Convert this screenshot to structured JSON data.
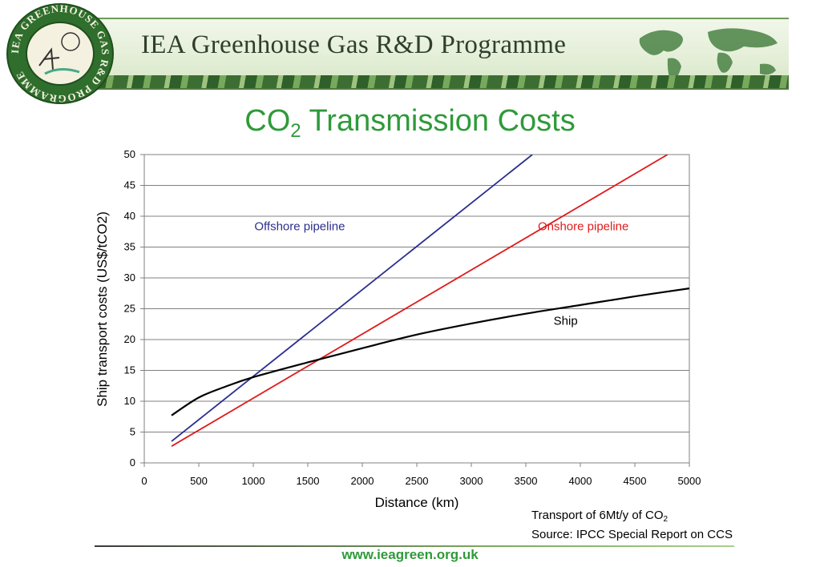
{
  "header": {
    "programme_title": "IEA Greenhouse Gas R&D Programme",
    "logo_text": "IEA GREENHOUSE GAS R&D PROGRAMME"
  },
  "slide": {
    "title_main": "CO",
    "title_sub": "2",
    "title_rest": " Transmission Costs"
  },
  "note": {
    "line1_main": "Transport of 6Mt/y of CO",
    "line1_sub": "2",
    "line2": "Source: IPCC Special Report on CCS"
  },
  "footer": {
    "url": "www.ieagreen.org.uk"
  },
  "colors": {
    "title_green": "#2f9a3a",
    "offshore": "#2c2f8f",
    "onshore": "#e01b1b",
    "ship": "#000000"
  },
  "chart_data": {
    "type": "line",
    "title": "",
    "xlabel": "Distance (km)",
    "ylabel": "Ship transport costs (US$/tCO2)",
    "xlim": [
      0,
      5000
    ],
    "ylim": [
      0,
      50
    ],
    "xticks": [
      "0",
      "500",
      "1000",
      "1500",
      "2000",
      "2500",
      "3000",
      "3500",
      "4000",
      "4500",
      "5000"
    ],
    "yticks": [
      "0",
      "5",
      "10",
      "15",
      "20",
      "25",
      "30",
      "35",
      "40",
      "45",
      "50"
    ],
    "grid": "horizontal",
    "series": [
      {
        "name": "Offshore pipeline",
        "color": "#2c2f8f",
        "x": [
          250,
          3560
        ],
        "y": [
          3.5,
          50
        ]
      },
      {
        "name": "Onshore pipeline",
        "color": "#e01b1b",
        "x": [
          250,
          4800
        ],
        "y": [
          2.7,
          50
        ]
      },
      {
        "name": "Ship",
        "color": "#000000",
        "x": [
          250,
          500,
          750,
          1000,
          1500,
          2000,
          2500,
          3000,
          3500,
          4000,
          4500,
          5000
        ],
        "y": [
          7.7,
          10.6,
          12.4,
          13.9,
          16.3,
          18.6,
          20.8,
          22.6,
          24.2,
          25.6,
          27.0,
          28.3
        ]
      }
    ],
    "annotations": [
      {
        "text": "Offshore pipeline",
        "series": 0
      },
      {
        "text": "Onshore pipeline",
        "series": 1
      },
      {
        "text": "Ship",
        "series": 2
      }
    ]
  }
}
